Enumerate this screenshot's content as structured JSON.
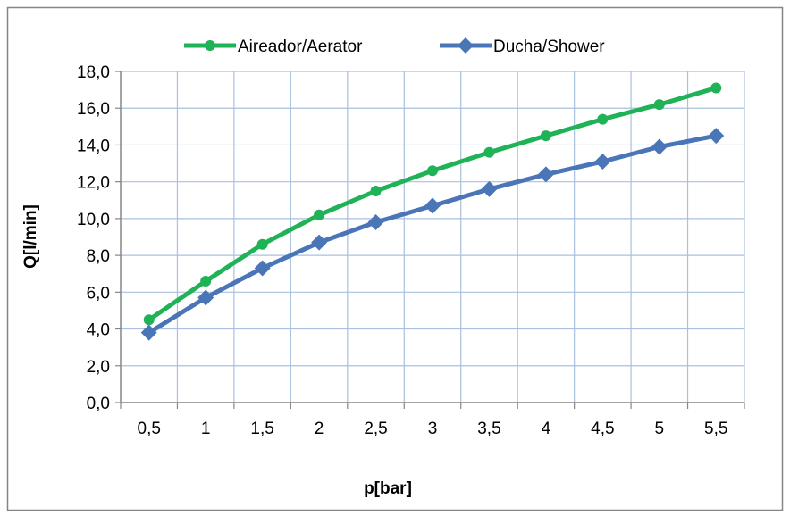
{
  "colors": {
    "aerator": "#1fb257",
    "shower": "#4a76b8",
    "grid": "#a9c0e0",
    "axis": "#868686",
    "frame": "#868686"
  },
  "chart_data": {
    "type": "line",
    "title": "",
    "xlabel": "p[bar]",
    "ylabel": "Q[l/min]",
    "categories": [
      "0,5",
      "1",
      "1,5",
      "2",
      "2,5",
      "3",
      "3,5",
      "4",
      "4,5",
      "5",
      "5,5"
    ],
    "yticks": [
      "0,0",
      "2,0",
      "4,0",
      "6,0",
      "8,0",
      "10,0",
      "12,0",
      "14,0",
      "16,0",
      "18,0"
    ],
    "ylim": [
      0,
      18
    ],
    "grid": true,
    "legend_position": "top",
    "series": [
      {
        "name": "Aireador/Aerator",
        "color_key": "aerator",
        "marker": "circle",
        "values": [
          4.5,
          6.6,
          8.6,
          10.2,
          11.5,
          12.6,
          13.6,
          14.5,
          15.4,
          16.2,
          17.1
        ]
      },
      {
        "name": "Ducha/Shower",
        "color_key": "shower",
        "marker": "diamond",
        "values": [
          3.8,
          5.7,
          7.3,
          8.7,
          9.8,
          10.7,
          11.6,
          12.4,
          13.1,
          13.9,
          14.5
        ]
      }
    ]
  }
}
